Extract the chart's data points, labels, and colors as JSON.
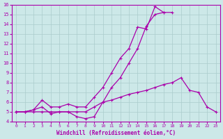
{
  "bg_color": "#cce8e8",
  "grid_color": "#aacccc",
  "line_color": "#aa00aa",
  "xlabel": "Windchill (Refroidissement éolien,°C)",
  "xlim": [
    -0.5,
    23.5
  ],
  "ylim": [
    4,
    16
  ],
  "yticks": [
    4,
    5,
    6,
    7,
    8,
    9,
    10,
    11,
    12,
    13,
    14,
    15,
    16
  ],
  "xticks": [
    0,
    1,
    2,
    3,
    4,
    5,
    6,
    7,
    8,
    9,
    10,
    11,
    12,
    13,
    14,
    15,
    16,
    17,
    18,
    19,
    20,
    21,
    22,
    23
  ],
  "series1_x": [
    0,
    1,
    2,
    3,
    4,
    5,
    6,
    7,
    8,
    9,
    10,
    11,
    12,
    13,
    14,
    15,
    16,
    17,
    18,
    19,
    20,
    21,
    22,
    23
  ],
  "series1_y": [
    5.0,
    5.0,
    5.2,
    6.2,
    5.5,
    5.5,
    5.8,
    5.5,
    5.5,
    6.5,
    7.5,
    9.0,
    10.5,
    11.5,
    13.7,
    13.5,
    15.8,
    15.2,
    15.2,
    null,
    null,
    null,
    null,
    null
  ],
  "series2_x": [
    0,
    1,
    2,
    3,
    4,
    5,
    6,
    7,
    8,
    9,
    10,
    11,
    12,
    13,
    14,
    15,
    16,
    17,
    18,
    19,
    20,
    21,
    22,
    23
  ],
  "series2_y": [
    5.0,
    5.0,
    5.2,
    5.5,
    4.8,
    5.0,
    5.0,
    4.5,
    4.3,
    4.5,
    6.0,
    7.5,
    8.5,
    10.0,
    11.5,
    13.8,
    15.0,
    15.2,
    null,
    null,
    null,
    null,
    null,
    null
  ],
  "series3_x": [
    0,
    1,
    2,
    3,
    4,
    5,
    6,
    7,
    8,
    9,
    10,
    11,
    12,
    13,
    14,
    15,
    16,
    17,
    18,
    19,
    20,
    21,
    22,
    23
  ],
  "series3_y": [
    5.0,
    5.0,
    5.0,
    5.0,
    5.0,
    5.0,
    5.0,
    5.0,
    5.0,
    5.5,
    6.0,
    6.2,
    6.5,
    6.8,
    7.0,
    7.2,
    7.5,
    7.8,
    8.0,
    8.5,
    7.2,
    7.0,
    5.5,
    5.0
  ]
}
